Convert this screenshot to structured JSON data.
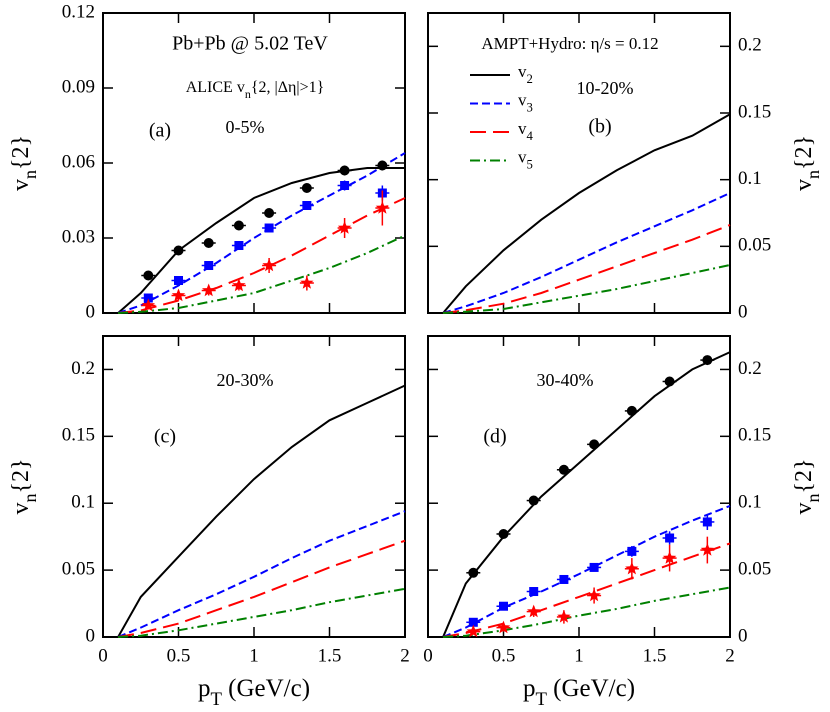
{
  "chart_data": [
    {
      "type": "line",
      "ylim": [
        0,
        0.12
      ],
      "yticks": [
        0,
        0.03,
        0.06,
        0.09,
        0.12
      ],
      "xlim": [
        0,
        2
      ],
      "xticks": [
        0,
        0.5,
        1,
        1.5,
        2
      ],
      "xtick_labels": false,
      "yaxis_side": "left",
      "ylabel": [
        "v",
        "n",
        "{2}"
      ],
      "annotations": [
        "Pb+Pb @ 5.02 TeV",
        "(a)",
        "0-5%"
      ],
      "annotation_parts": [
        "ALICE v",
        "n",
        "{2, |Δη|>1}"
      ],
      "series": [
        {
          "color": "#000000",
          "dash": "solid",
          "x": [
            0.1,
            0.25,
            0.5,
            0.75,
            1,
            1.25,
            1.5,
            1.75,
            2
          ],
          "values": [
            0,
            0.008,
            0.025,
            0.036,
            0.046,
            0.052,
            0.056,
            0.058,
            0.058
          ]
        },
        {
          "color": "#0000ff",
          "dash": "short",
          "x": [
            0.1,
            0.25,
            0.5,
            0.75,
            1,
            1.25,
            1.5,
            1.75,
            2
          ],
          "values": [
            0,
            0.003,
            0.011,
            0.02,
            0.03,
            0.039,
            0.047,
            0.055,
            0.064
          ]
        },
        {
          "color": "#ff0000",
          "dash": "long",
          "x": [
            0.1,
            0.25,
            0.5,
            0.75,
            1,
            1.25,
            1.5,
            1.75,
            2
          ],
          "values": [
            0,
            0.001,
            0.005,
            0.01,
            0.016,
            0.023,
            0.031,
            0.039,
            0.046
          ]
        },
        {
          "color": "#008000",
          "dash": "dashdot",
          "x": [
            0.1,
            0.25,
            0.5,
            0.75,
            1,
            1.25,
            1.5,
            1.75,
            2
          ],
          "values": [
            0,
            0.0005,
            0.002,
            0.005,
            0.008,
            0.013,
            0.018,
            0.024,
            0.031
          ]
        },
        {
          "color": "#000000",
          "marker": "circle",
          "x": [
            0.3,
            0.5,
            0.7,
            0.9,
            1.1,
            1.35,
            1.6,
            1.85
          ],
          "values": [
            0.015,
            0.025,
            0.028,
            0.035,
            0.04,
            0.05,
            0.057,
            0.059
          ],
          "errors": [
            0.001,
            0.001,
            0.001,
            0.001,
            0.001,
            0.001,
            0.002,
            0.002
          ]
        },
        {
          "color": "#0000ff",
          "marker": "square",
          "x": [
            0.3,
            0.5,
            0.7,
            0.9,
            1.1,
            1.35,
            1.6,
            1.85
          ],
          "values": [
            0.006,
            0.013,
            0.019,
            0.027,
            0.034,
            0.043,
            0.051,
            0.048
          ],
          "errors": [
            0.001,
            0.001,
            0.001,
            0.001,
            0.001,
            0.001,
            0.002,
            0.003
          ]
        },
        {
          "color": "#ff0000",
          "marker": "star",
          "x": [
            0.3,
            0.5,
            0.7,
            0.9,
            1.1,
            1.35,
            1.6,
            1.85
          ],
          "values": [
            0.003,
            0.007,
            0.009,
            0.011,
            0.019,
            0.012,
            0.034,
            0.042
          ],
          "errors": [
            0.001,
            0.002,
            0.002,
            0.002,
            0.003,
            0.003,
            0.004,
            0.007
          ]
        }
      ]
    },
    {
      "type": "line",
      "ylim": [
        0,
        0.225
      ],
      "yticks": [
        0,
        0.05,
        0.1,
        0.15,
        0.2
      ],
      "xlim": [
        0,
        2
      ],
      "xticks": [
        0,
        0.5,
        1,
        1.5,
        2
      ],
      "xtick_labels": false,
      "yaxis_side": "right",
      "ylabel": [
        "v",
        "n",
        "{2}"
      ],
      "annotations": [
        "AMPT+Hydro: η/s = 0.12",
        "10-20%",
        "(b)"
      ],
      "legend": "upper-left",
      "series": [
        {
          "name": "v2",
          "color": "#000000",
          "dash": "solid",
          "x": [
            0.1,
            0.25,
            0.5,
            0.75,
            1,
            1.25,
            1.5,
            1.75,
            2
          ],
          "values": [
            0,
            0.02,
            0.047,
            0.07,
            0.09,
            0.107,
            0.122,
            0.133,
            0.149
          ]
        },
        {
          "name": "v3",
          "color": "#0000ff",
          "dash": "short",
          "x": [
            0.1,
            0.25,
            0.5,
            0.75,
            1,
            1.25,
            1.5,
            1.75,
            2
          ],
          "values": [
            0,
            0.005,
            0.015,
            0.027,
            0.04,
            0.053,
            0.065,
            0.077,
            0.09
          ]
        },
        {
          "name": "v4",
          "color": "#ff0000",
          "dash": "long",
          "x": [
            0.1,
            0.25,
            0.5,
            0.75,
            1,
            1.25,
            1.5,
            1.75,
            2
          ],
          "values": [
            0,
            0.002,
            0.007,
            0.015,
            0.025,
            0.035,
            0.045,
            0.055,
            0.066
          ]
        },
        {
          "name": "v5",
          "color": "#008000",
          "dash": "dashdot",
          "x": [
            0.1,
            0.25,
            0.5,
            0.75,
            1,
            1.25,
            1.5,
            1.75,
            2
          ],
          "values": [
            0,
            0.001,
            0.003,
            0.008,
            0.013,
            0.018,
            0.024,
            0.03,
            0.036
          ]
        }
      ]
    },
    {
      "type": "line",
      "ylim": [
        0,
        0.225
      ],
      "yticks": [
        0,
        0.05,
        0.1,
        0.15,
        0.2
      ],
      "xlim": [
        0,
        2
      ],
      "xticks": [
        0,
        0.5,
        1,
        1.5,
        2
      ],
      "xtick_labels": true,
      "yaxis_side": "left",
      "ylabel": [
        "v",
        "n",
        "{2}"
      ],
      "xlabel": [
        "p",
        "T",
        " (GeV/c)"
      ],
      "annotations": [
        "20-30%",
        "(c)"
      ],
      "series": [
        {
          "color": "#000000",
          "dash": "solid",
          "x": [
            0.1,
            0.25,
            0.5,
            0.75,
            1,
            1.25,
            1.5,
            1.75,
            2
          ],
          "values": [
            0,
            0.03,
            0.06,
            0.09,
            0.118,
            0.142,
            0.162,
            0.175,
            0.188
          ]
        },
        {
          "color": "#0000ff",
          "dash": "short",
          "x": [
            0.1,
            0.25,
            0.5,
            0.75,
            1,
            1.25,
            1.5,
            1.75,
            2
          ],
          "values": [
            0,
            0.007,
            0.02,
            0.032,
            0.045,
            0.059,
            0.072,
            0.083,
            0.094
          ]
        },
        {
          "color": "#ff0000",
          "dash": "long",
          "x": [
            0.1,
            0.25,
            0.5,
            0.75,
            1,
            1.25,
            1.5,
            1.75,
            2
          ],
          "values": [
            0,
            0.003,
            0.01,
            0.02,
            0.03,
            0.041,
            0.052,
            0.062,
            0.072
          ]
        },
        {
          "color": "#008000",
          "dash": "dashdot",
          "x": [
            0.1,
            0.25,
            0.5,
            0.75,
            1,
            1.25,
            1.5,
            1.75,
            2
          ],
          "values": [
            0,
            0.001,
            0.005,
            0.01,
            0.015,
            0.02,
            0.026,
            0.031,
            0.036
          ]
        }
      ]
    },
    {
      "type": "line",
      "ylim": [
        0,
        0.225
      ],
      "yticks": [
        0,
        0.05,
        0.1,
        0.15,
        0.2
      ],
      "xlim": [
        0,
        2
      ],
      "xticks": [
        0,
        0.5,
        1,
        1.5,
        2
      ],
      "xtick_labels": true,
      "yaxis_side": "right",
      "ylabel": [
        "v",
        "n",
        "{2}"
      ],
      "xlabel": [
        "p",
        "T",
        " (GeV/c)"
      ],
      "annotations": [
        "30-40%",
        "(d)"
      ],
      "series": [
        {
          "color": "#000000",
          "dash": "solid",
          "x": [
            0.1,
            0.25,
            0.5,
            0.75,
            1,
            1.25,
            1.5,
            1.75,
            2
          ],
          "values": [
            0,
            0.04,
            0.075,
            0.105,
            0.13,
            0.155,
            0.18,
            0.2,
            0.213
          ]
        },
        {
          "color": "#0000ff",
          "dash": "short",
          "x": [
            0.1,
            0.25,
            0.5,
            0.75,
            1,
            1.25,
            1.5,
            1.75,
            2
          ],
          "values": [
            0,
            0.007,
            0.022,
            0.034,
            0.047,
            0.061,
            0.075,
            0.087,
            0.098
          ]
        },
        {
          "color": "#ff0000",
          "dash": "long",
          "x": [
            0.1,
            0.25,
            0.5,
            0.75,
            1,
            1.25,
            1.5,
            1.75,
            2
          ],
          "values": [
            0,
            0.003,
            0.01,
            0.02,
            0.03,
            0.04,
            0.05,
            0.06,
            0.07
          ]
        },
        {
          "color": "#008000",
          "dash": "dashdot",
          "x": [
            0.1,
            0.25,
            0.5,
            0.75,
            1,
            1.25,
            1.5,
            1.75,
            2
          ],
          "values": [
            0,
            0.001,
            0.005,
            0.01,
            0.016,
            0.021,
            0.027,
            0.032,
            0.037
          ]
        },
        {
          "color": "#000000",
          "marker": "circle",
          "x": [
            0.3,
            0.5,
            0.7,
            0.9,
            1.1,
            1.35,
            1.6,
            1.85
          ],
          "values": [
            0.048,
            0.077,
            0.102,
            0.125,
            0.144,
            0.169,
            0.191,
            0.207
          ],
          "errors": [
            0.002,
            0.002,
            0.002,
            0.002,
            0.002,
            0.002,
            0.002,
            0.002
          ]
        },
        {
          "color": "#0000ff",
          "marker": "square",
          "x": [
            0.3,
            0.5,
            0.7,
            0.9,
            1.1,
            1.35,
            1.6,
            1.85
          ],
          "values": [
            0.011,
            0.023,
            0.034,
            0.043,
            0.052,
            0.064,
            0.074,
            0.086
          ],
          "errors": [
            0.002,
            0.002,
            0.002,
            0.002,
            0.003,
            0.004,
            0.005,
            0.006
          ]
        },
        {
          "color": "#ff0000",
          "marker": "star",
          "x": [
            0.3,
            0.5,
            0.7,
            0.9,
            1.1,
            1.35,
            1.6,
            1.85
          ],
          "values": [
            0.004,
            0.007,
            0.019,
            0.015,
            0.031,
            0.051,
            0.059,
            0.065
          ],
          "errors": [
            0.002,
            0.003,
            0.004,
            0.005,
            0.006,
            0.008,
            0.01,
            0.01
          ]
        }
      ]
    }
  ]
}
